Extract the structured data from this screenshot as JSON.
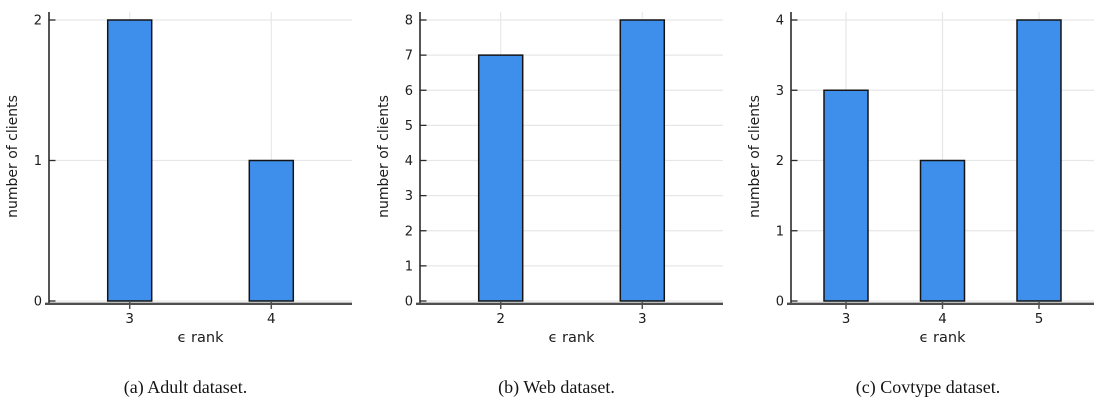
{
  "figure": {
    "background": "#ffffff",
    "bar_fill": "#3E8EEC",
    "bar_stroke": "#141414",
    "grid_color": "#E7E7E7",
    "spine_color": "#2B2B2B",
    "axis_line_color": "#4F4F4F",
    "text_color": "#1C1C1C"
  },
  "chart_data": [
    {
      "type": "bar",
      "title": "",
      "xlabel": "ϵ rank",
      "ylabel": "number of clients",
      "categories": [
        "3",
        "4"
      ],
      "values": [
        2,
        1
      ],
      "yticks": [
        0,
        1,
        2
      ],
      "ylim": [
        0,
        2.06
      ],
      "grid": "on",
      "legend": "none",
      "caption": "(a) Adult dataset."
    },
    {
      "type": "bar",
      "title": "",
      "xlabel": "ϵ rank",
      "ylabel": "number of clients",
      "categories": [
        "2",
        "3"
      ],
      "values": [
        7,
        8
      ],
      "yticks": [
        0,
        1,
        2,
        3,
        4,
        5,
        6,
        7,
        8
      ],
      "ylim": [
        0,
        8.23
      ],
      "grid": "on",
      "legend": "none",
      "caption": "(b) Web dataset."
    },
    {
      "type": "bar",
      "title": "",
      "xlabel": "ϵ rank",
      "ylabel": "number of clients",
      "categories": [
        "3",
        "4",
        "5"
      ],
      "values": [
        3,
        2,
        4
      ],
      "yticks": [
        0,
        1,
        2,
        3,
        4
      ],
      "ylim": [
        0,
        4.11
      ],
      "grid": "on",
      "legend": "none",
      "caption": "(c) Covtype dataset."
    }
  ]
}
